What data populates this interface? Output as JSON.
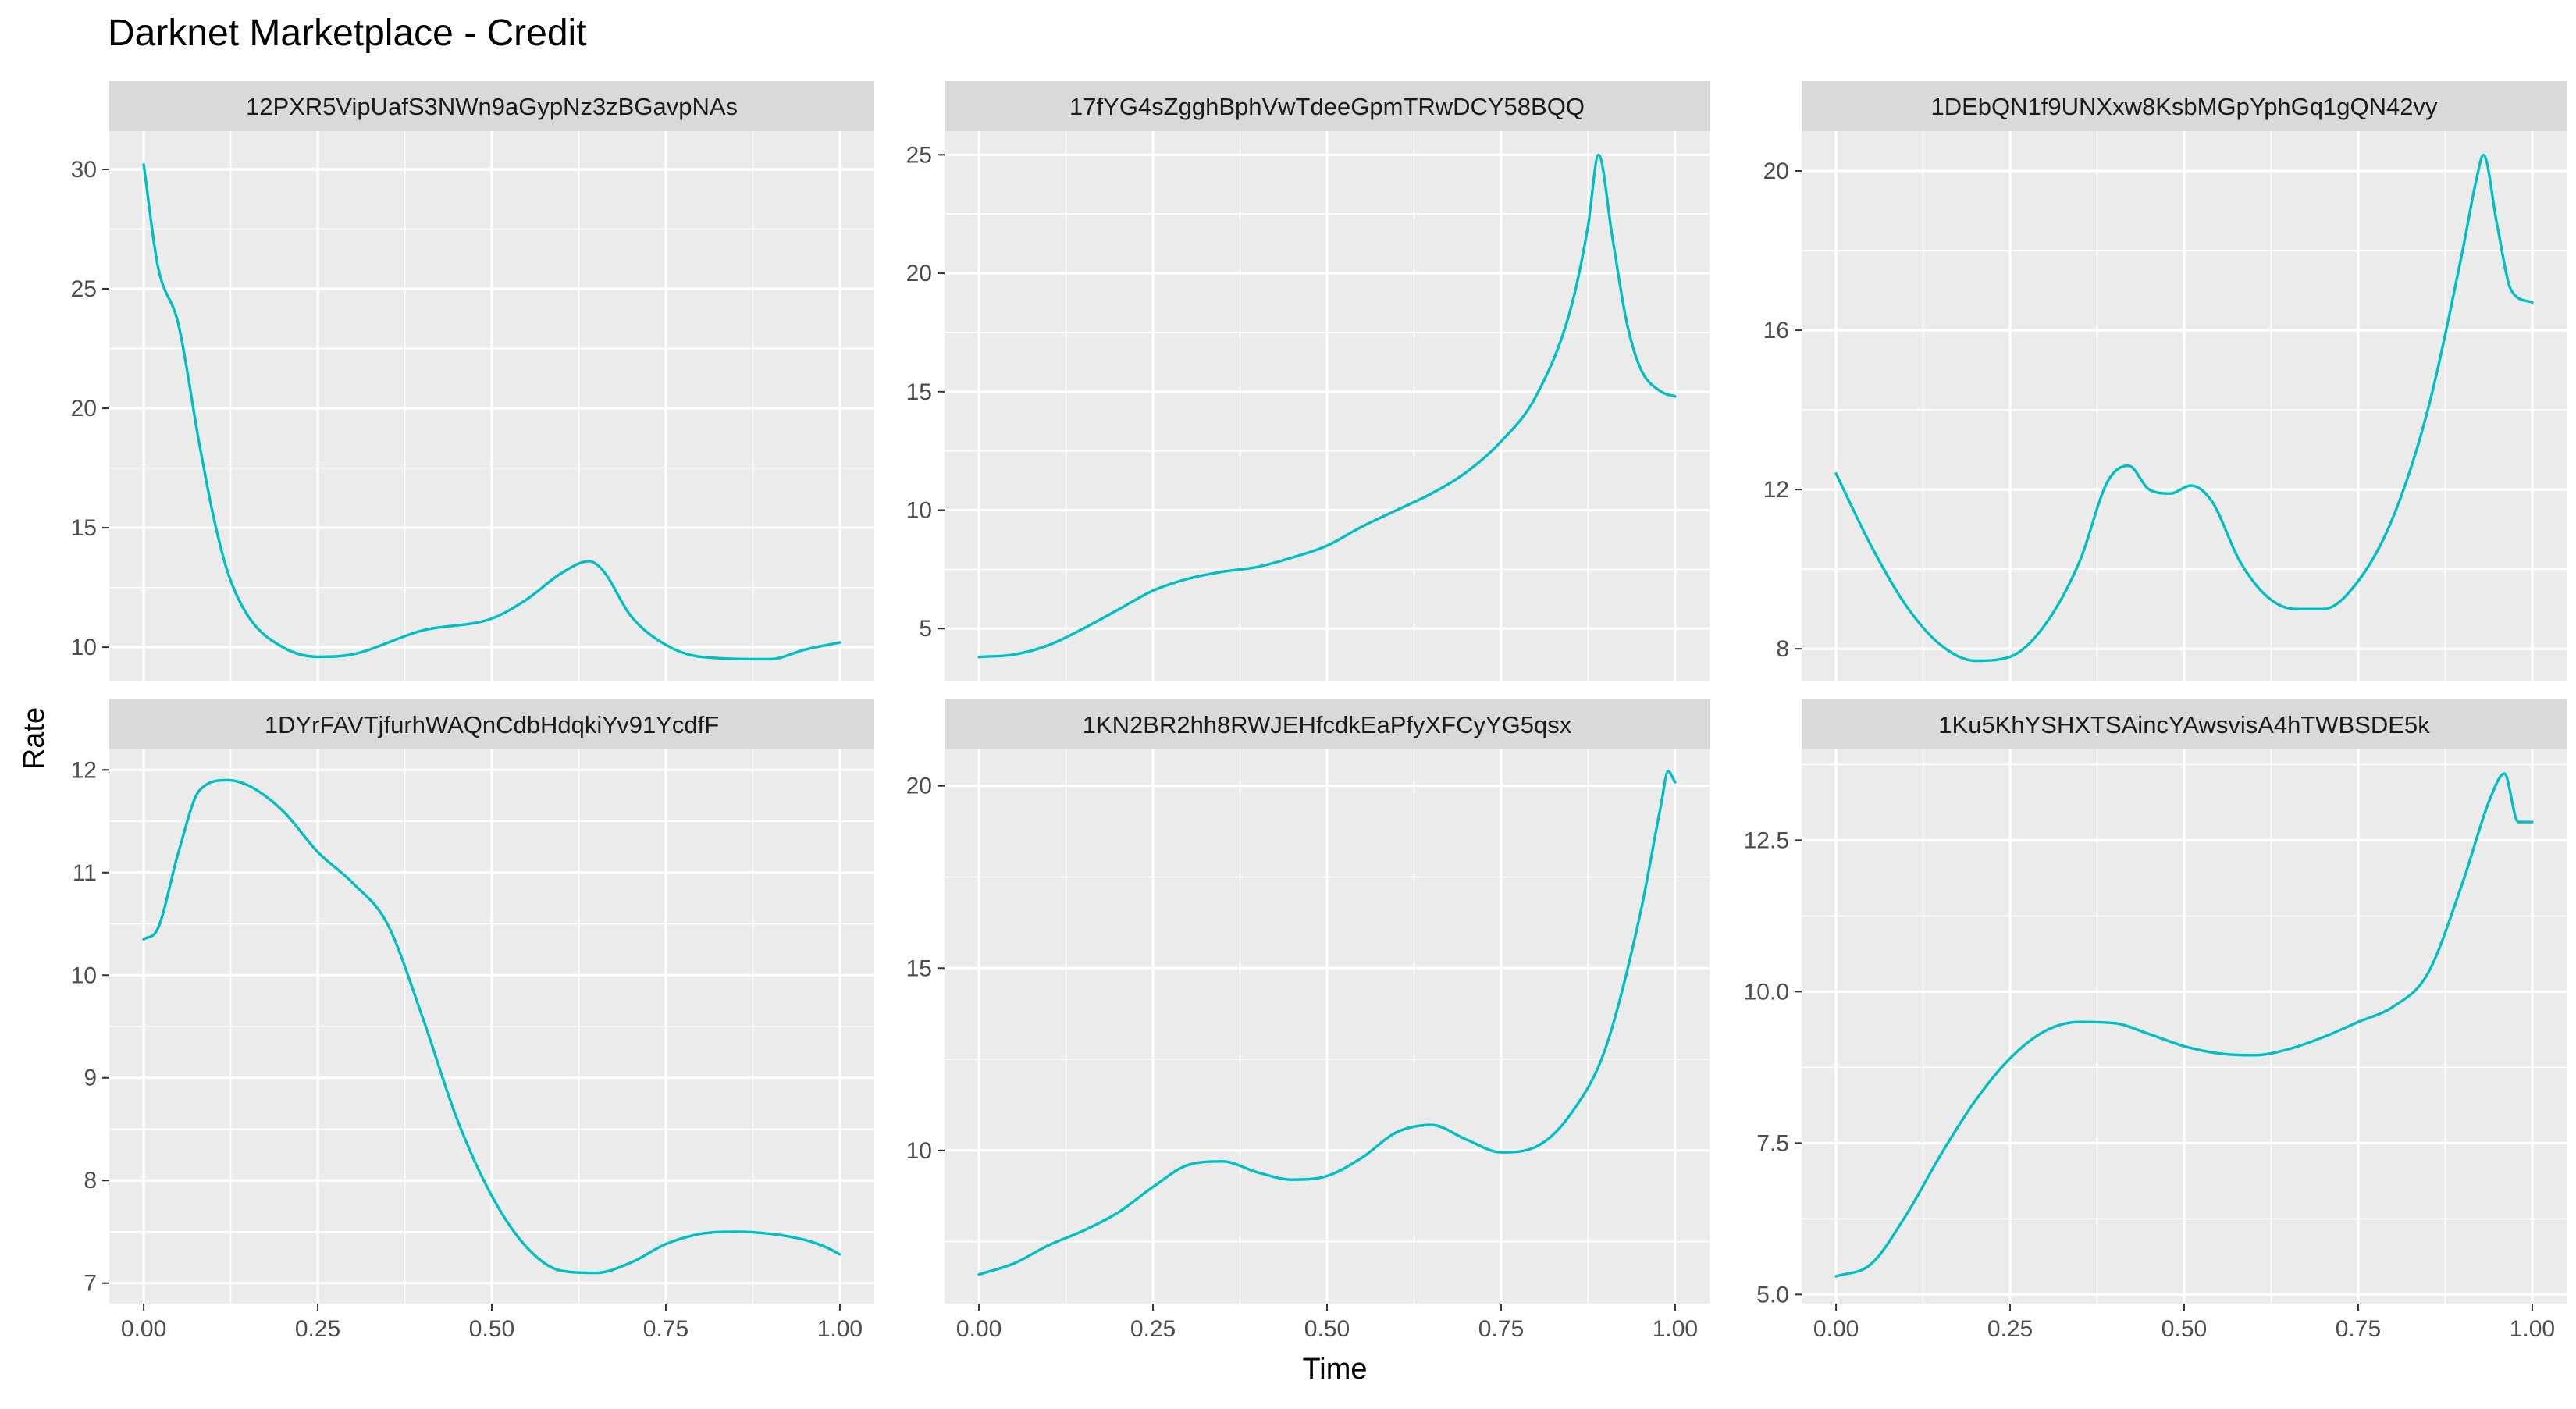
{
  "chart_data": {
    "type": "line",
    "title": "Darknet Marketplace - Credit",
    "xlabel": "Time",
    "ylabel": "Rate",
    "line_color": "#00BFC4",
    "panel_bg": "#EBEBEB",
    "strip_bg": "#D9D9D9",
    "grid_color": "#FFFFFF",
    "grid": true,
    "legend": "none",
    "x_ticks": [
      0,
      0.25,
      0.5,
      0.75,
      1
    ],
    "x_tick_labels": [
      "0.00",
      "0.25",
      "0.50",
      "0.75",
      "1.00"
    ],
    "panels": [
      {
        "name": "12PXR5VipUafS3NWn9aGypNz3zBGavpNAs",
        "ylim": [
          8.6,
          31.6
        ],
        "y_ticks": [
          10,
          15,
          20,
          25,
          30
        ],
        "y_tick_labels": [
          "10",
          "15",
          "20",
          "25",
          "30"
        ],
        "x": [
          0,
          0.02,
          0.05,
          0.08,
          0.1,
          0.12,
          0.15,
          0.2,
          0.25,
          0.3,
          0.4,
          0.5,
          0.55,
          0.6,
          0.64,
          0.66,
          0.7,
          0.75,
          0.8,
          0.9,
          0.95,
          1.0
        ],
        "y": [
          30.2,
          26,
          23.5,
          18.5,
          15.5,
          13.2,
          11.3,
          10.0,
          9.6,
          9.7,
          10.7,
          11.2,
          12,
          13.1,
          13.6,
          13.2,
          11.3,
          10.1,
          9.6,
          9.5,
          9.9,
          10.2
        ]
      },
      {
        "name": "17fYG4sZgghBphVwTdeeGpmTRwDCY58BQQ",
        "ylim": [
          2.8,
          26.0
        ],
        "y_ticks": [
          5,
          10,
          15,
          20,
          25
        ],
        "y_tick_labels": [
          "5",
          "10",
          "15",
          "20",
          "25"
        ],
        "x": [
          0,
          0.05,
          0.1,
          0.15,
          0.2,
          0.25,
          0.3,
          0.35,
          0.4,
          0.45,
          0.5,
          0.55,
          0.6,
          0.65,
          0.7,
          0.75,
          0.8,
          0.85,
          0.875,
          0.89,
          0.91,
          0.93,
          0.95,
          0.98,
          1.0
        ],
        "y": [
          3.8,
          3.9,
          4.3,
          5.0,
          5.8,
          6.6,
          7.1,
          7.4,
          7.6,
          8.0,
          8.5,
          9.3,
          10.0,
          10.7,
          11.6,
          12.9,
          14.8,
          18.5,
          22.0,
          25.0,
          21.5,
          18.0,
          16.0,
          15.0,
          14.8
        ]
      },
      {
        "name": "1DEbQN1f9UNXxw8KsbMGpYphGq1gQN42vy",
        "ylim": [
          7.2,
          21.0
        ],
        "y_ticks": [
          8,
          12,
          16,
          20
        ],
        "y_tick_labels": [
          "8",
          "12",
          "16",
          "20"
        ],
        "x": [
          0,
          0.05,
          0.1,
          0.15,
          0.2,
          0.25,
          0.3,
          0.35,
          0.39,
          0.42,
          0.45,
          0.48,
          0.51,
          0.54,
          0.58,
          0.62,
          0.66,
          0.7,
          0.75,
          0.8,
          0.85,
          0.9,
          0.92,
          0.93,
          0.95,
          0.97,
          1.0
        ],
        "y": [
          12.4,
          10.6,
          9.1,
          8.1,
          7.7,
          7.8,
          8.6,
          10.2,
          12.2,
          12.6,
          12.0,
          11.9,
          12.1,
          11.7,
          10.2,
          9.3,
          9.0,
          9.0,
          9.7,
          11.3,
          14.0,
          18.0,
          19.8,
          20.4,
          18.6,
          17.0,
          16.7
        ]
      },
      {
        "name": "1DYrFAVTjfurhWAQnCdbHdqkiYv91YcdfF",
        "ylim": [
          6.8,
          12.2
        ],
        "y_ticks": [
          7,
          8,
          9,
          10,
          11,
          12
        ],
        "y_tick_labels": [
          "7",
          "8",
          "9",
          "10",
          "11",
          "12"
        ],
        "x": [
          0,
          0.02,
          0.05,
          0.08,
          0.12,
          0.15,
          0.2,
          0.25,
          0.3,
          0.35,
          0.4,
          0.45,
          0.5,
          0.55,
          0.6,
          0.65,
          0.7,
          0.75,
          0.8,
          0.85,
          0.9,
          0.95,
          0.98,
          1.0
        ],
        "y": [
          10.35,
          10.45,
          11.2,
          11.8,
          11.9,
          11.85,
          11.6,
          11.2,
          10.9,
          10.5,
          9.6,
          8.6,
          7.85,
          7.35,
          7.12,
          7.1,
          7.2,
          7.38,
          7.48,
          7.5,
          7.48,
          7.42,
          7.35,
          7.28
        ]
      },
      {
        "name": "1KN2BR2hh8RWJEHfcdkEaPfyXFCyYG5qsx",
        "ylim": [
          5.8,
          21.0
        ],
        "y_ticks": [
          10,
          15,
          20
        ],
        "y_tick_labels": [
          "10",
          "15",
          "20"
        ],
        "x": [
          0,
          0.05,
          0.1,
          0.15,
          0.2,
          0.25,
          0.3,
          0.35,
          0.4,
          0.45,
          0.5,
          0.55,
          0.6,
          0.65,
          0.7,
          0.75,
          0.8,
          0.85,
          0.9,
          0.95,
          0.98,
          0.99,
          1.0
        ],
        "y": [
          6.6,
          6.9,
          7.4,
          7.8,
          8.3,
          9.0,
          9.6,
          9.7,
          9.4,
          9.2,
          9.3,
          9.8,
          10.5,
          10.7,
          10.3,
          9.95,
          10.1,
          11.0,
          12.8,
          16.5,
          19.5,
          20.4,
          20.1
        ]
      },
      {
        "name": "1Ku5KhYSHXTSAincYAwsvisA4hTWBSDE5k",
        "ylim": [
          4.85,
          14.0
        ],
        "y_ticks": [
          5.0,
          7.5,
          10.0,
          12.5
        ],
        "y_tick_labels": [
          "5.0",
          "7.5",
          "10.0",
          "12.5"
        ],
        "x": [
          0,
          0.05,
          0.1,
          0.15,
          0.2,
          0.25,
          0.3,
          0.35,
          0.4,
          0.45,
          0.5,
          0.55,
          0.6,
          0.65,
          0.7,
          0.75,
          0.8,
          0.85,
          0.9,
          0.94,
          0.96,
          0.98,
          1.0
        ],
        "y": [
          5.3,
          5.5,
          6.3,
          7.3,
          8.2,
          8.9,
          9.35,
          9.5,
          9.48,
          9.3,
          9.1,
          8.98,
          8.95,
          9.05,
          9.25,
          9.5,
          9.75,
          10.3,
          11.8,
          13.2,
          13.6,
          12.8,
          12.8
        ]
      }
    ]
  }
}
